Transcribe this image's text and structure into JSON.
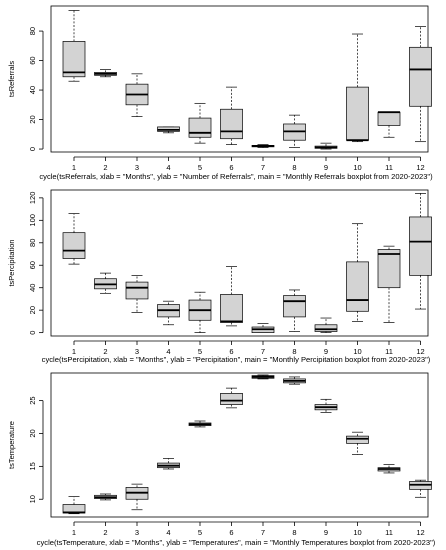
{
  "chart_data": [
    {
      "type": "boxplot",
      "code_caption": "cycle(tsReferrals, xlab = \"Months\", ylab = \"Number of Referrals\", main = \"Monthly Referrals boxplot from 2020-2023\")",
      "ylabel": "tsReferrals",
      "categories": [
        "1",
        "2",
        "3",
        "4",
        "5",
        "6",
        "7",
        "8",
        "9",
        "10",
        "11",
        "12"
      ],
      "ylim": [
        -2,
        97
      ],
      "yticks": [
        0,
        20,
        40,
        60,
        80
      ],
      "boxes": [
        {
          "min": 46,
          "q1": 49,
          "median": 52,
          "q3": 73,
          "max": 94
        },
        {
          "min": 49,
          "q1": 50,
          "median": 51,
          "q3": 52,
          "max": 54
        },
        {
          "min": 22,
          "q1": 30,
          "median": 37,
          "q3": 44,
          "max": 51
        },
        {
          "min": 11,
          "q1": 12,
          "median": 13,
          "q3": 15,
          "max": 15
        },
        {
          "min": 4,
          "q1": 8,
          "median": 11,
          "q3": 21,
          "max": 31
        },
        {
          "min": 3,
          "q1": 7,
          "median": 12,
          "q3": 27,
          "max": 42
        },
        {
          "min": 1,
          "q1": 1.5,
          "median": 2,
          "q3": 2.5,
          "max": 3
        },
        {
          "min": 1,
          "q1": 6,
          "median": 12,
          "q3": 17,
          "max": 23
        },
        {
          "min": 0,
          "q1": 0.5,
          "median": 1,
          "q3": 2,
          "max": 4
        },
        {
          "min": 5,
          "q1": 6,
          "median": 6,
          "q3": 42,
          "max": 78
        },
        {
          "min": 8,
          "q1": 16,
          "median": 25,
          "q3": 25,
          "max": 25
        },
        {
          "min": 5,
          "q1": 29,
          "median": 54,
          "q3": 69,
          "max": 83
        }
      ]
    },
    {
      "type": "boxplot",
      "code_caption": "cycle(tsPercipitation, xlab = \"Months\", ylab = \"Percipitation\", main = \"Monthly Percipitation boxplot from 2020-2023\")",
      "ylabel": "tsPercipitation",
      "categories": [
        "1",
        "2",
        "3",
        "4",
        "5",
        "6",
        "7",
        "8",
        "9",
        "10",
        "11",
        "12"
      ],
      "ylim": [
        -3,
        127
      ],
      "yticks": [
        0,
        20,
        40,
        60,
        80,
        100,
        120
      ],
      "boxes": [
        {
          "min": 61,
          "q1": 66,
          "median": 73,
          "q3": 89,
          "max": 106
        },
        {
          "min": 35,
          "q1": 39,
          "median": 43,
          "q3": 48,
          "max": 53
        },
        {
          "min": 18,
          "q1": 30,
          "median": 40,
          "q3": 45,
          "max": 51
        },
        {
          "min": 7,
          "q1": 14,
          "median": 20,
          "q3": 25,
          "max": 28
        },
        {
          "min": 0,
          "q1": 11,
          "median": 20,
          "q3": 29,
          "max": 36
        },
        {
          "min": 6,
          "q1": 9,
          "median": 10,
          "q3": 34,
          "max": 59
        },
        {
          "min": 0,
          "q1": 0,
          "median": 3,
          "q3": 5,
          "max": 8
        },
        {
          "min": 1,
          "q1": 14,
          "median": 28,
          "q3": 33,
          "max": 38
        },
        {
          "min": 0,
          "q1": 1,
          "median": 3,
          "q3": 7,
          "max": 13
        },
        {
          "min": 10,
          "q1": 19,
          "median": 29,
          "q3": 63,
          "max": 97
        },
        {
          "min": 9,
          "q1": 40,
          "median": 70,
          "q3": 74,
          "max": 77
        },
        {
          "min": 21,
          "q1": 51,
          "median": 81,
          "q3": 103,
          "max": 124
        }
      ]
    },
    {
      "type": "boxplot",
      "code_caption": "cycle(tsTemperature, xlab = \"Months\", ylab = \"Temperatures\", main = \"Monthly Temperatures boxplot from 2020-2023\")",
      "ylabel": "tsTemperature",
      "categories": [
        "1",
        "2",
        "3",
        "4",
        "5",
        "6",
        "7",
        "8",
        "9",
        "10",
        "11",
        "12"
      ],
      "ylim": [
        7.3,
        29.2
      ],
      "yticks": [
        10,
        15,
        20,
        25
      ],
      "boxes": [
        {
          "min": 7.8,
          "q1": 7.9,
          "median": 8.0,
          "q3": 9.2,
          "max": 10.4
        },
        {
          "min": 9.9,
          "q1": 10.1,
          "median": 10.3,
          "q3": 10.6,
          "max": 10.8
        },
        {
          "min": 8.4,
          "q1": 10.0,
          "median": 11.0,
          "q3": 11.8,
          "max": 12.3
        },
        {
          "min": 14.6,
          "q1": 14.8,
          "median": 15.1,
          "q3": 15.5,
          "max": 16.2
        },
        {
          "min": 21.0,
          "q1": 21.2,
          "median": 21.4,
          "q3": 21.6,
          "max": 21.9
        },
        {
          "min": 23.9,
          "q1": 24.4,
          "median": 25.0,
          "q3": 26.1,
          "max": 26.9
        },
        {
          "min": 28.3,
          "q1": 28.4,
          "median": 28.6,
          "q3": 28.8,
          "max": 28.9
        },
        {
          "min": 27.5,
          "q1": 27.7,
          "median": 28.0,
          "q3": 28.3,
          "max": 28.6
        },
        {
          "min": 23.2,
          "q1": 23.6,
          "median": 24.0,
          "q3": 24.4,
          "max": 25.2
        },
        {
          "min": 16.8,
          "q1": 18.5,
          "median": 19.2,
          "q3": 19.6,
          "max": 20.2
        },
        {
          "min": 14.0,
          "q1": 14.3,
          "median": 14.6,
          "q3": 14.8,
          "max": 15.3
        },
        {
          "min": 10.3,
          "q1": 11.5,
          "median": 12.2,
          "q3": 12.7,
          "max": 12.9
        }
      ]
    }
  ]
}
